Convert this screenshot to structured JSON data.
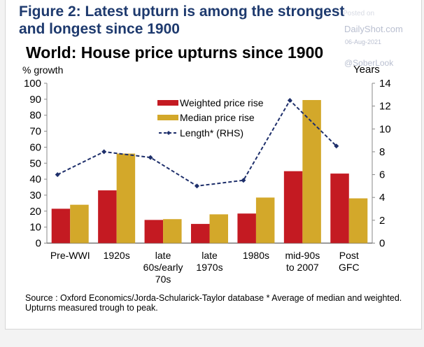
{
  "figure": {
    "title_line1": "Figure 2: Latest upturn is among the strongest",
    "title_line2": "and longest since 1900"
  },
  "watermark": {
    "posted": "Posted on",
    "site": "DailyShot.com",
    "date": "06-Aug-2021",
    "handle": "@SoberLook"
  },
  "colors": {
    "weighted": "#c41a22",
    "median": "#d3a82a",
    "length": "#1e2f6b",
    "title": "#1e3a6e"
  },
  "chart_data": {
    "type": "bar",
    "title": "World: House price upturns since 1900",
    "ylabel": "% growth",
    "y2label": "Years",
    "ylim": [
      0,
      100
    ],
    "y2lim": [
      0,
      14
    ],
    "yticks": [
      0,
      10,
      20,
      30,
      40,
      50,
      60,
      70,
      80,
      90,
      100
    ],
    "y2ticks": [
      0,
      2,
      4,
      6,
      8,
      10,
      12,
      14
    ],
    "grid": false,
    "legend_position": "top-center",
    "categories": [
      [
        "Pre-WWI"
      ],
      [
        "1920s"
      ],
      [
        "late",
        "60s/early",
        "70s"
      ],
      [
        "late",
        "1970s"
      ],
      [
        "1980s"
      ],
      [
        "mid-90s",
        "to 2007"
      ],
      [
        "Post",
        "GFC"
      ]
    ],
    "series": [
      {
        "name": "Weighted price rise",
        "type": "bar",
        "axis": "left",
        "values": [
          21.5,
          33,
          14.5,
          12,
          18.5,
          45,
          43.5
        ]
      },
      {
        "name": "Median price rise",
        "type": "bar",
        "axis": "left",
        "values": [
          24,
          56,
          15,
          18,
          28.5,
          89.5,
          28
        ]
      },
      {
        "name": "Length* (RHS)",
        "type": "line",
        "style": "dashed",
        "marker": "diamond",
        "axis": "right",
        "values": [
          6,
          8,
          7.5,
          5,
          5.5,
          12.5,
          8.5
        ]
      }
    ]
  },
  "source": "Source : Oxford Economics/Jorda-Schularick-Taylor database * Average of median and weighted. Upturns measured trough to peak."
}
